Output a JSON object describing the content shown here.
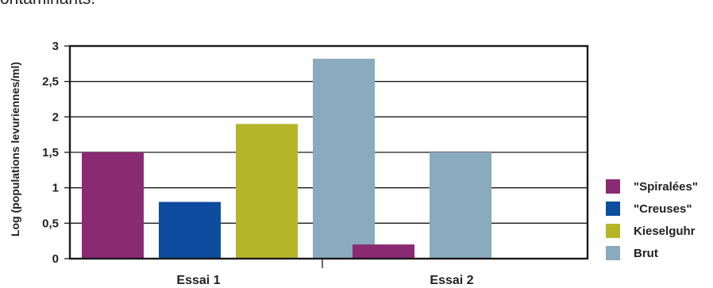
{
  "top_text": "ontaminants.",
  "chart_data": {
    "type": "bar",
    "ylabel": "Log (populations levuriennes/ml)",
    "xlabel": "",
    "ylim": [
      0,
      3
    ],
    "yticks": [
      "0",
      "0,5",
      "1",
      "1,5",
      "2",
      "2,5",
      "3"
    ],
    "categories": [
      "Essai 1",
      "Essai 2"
    ],
    "series": [
      {
        "name": "\"Spiralées\"",
        "color": "#8a2a72",
        "values": [
          1.5,
          0.2
        ]
      },
      {
        "name": "\"Creuses\"",
        "color": "#0d4c9e",
        "values": [
          0.8,
          null
        ]
      },
      {
        "name": "Kieselguhr",
        "color": "#b5b52a",
        "values": [
          1.9,
          null
        ]
      },
      {
        "name": "Brut",
        "color": "#8aaabe",
        "values": [
          2.82,
          1.5
        ]
      }
    ],
    "grid": true,
    "legend_position": "right"
  }
}
